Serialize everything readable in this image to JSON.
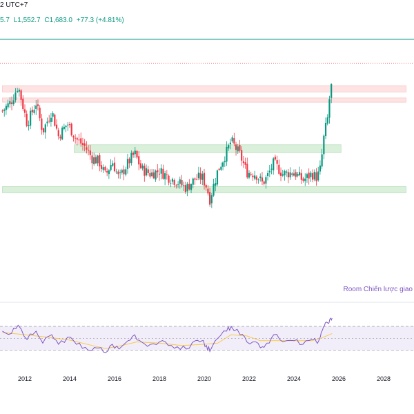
{
  "header": {
    "timeframe_tz": "2 UTC+7",
    "ohlc": {
      "open_tail": "5.7",
      "low": "L1,552.7",
      "close": "C1,683.0",
      "change": "+77.3 (+4.81%)"
    }
  },
  "annotation": "Room Chiến lược giao",
  "colors": {
    "up": "#089981",
    "down": "#f23645",
    "rsi_line": "#7e57c2",
    "rsi_ma": "#f7c948",
    "rsi_band": "#ede7f6",
    "resistance_zone": "#fde0e0",
    "support_zone": "#d6efd8"
  },
  "chart_data": [
    {
      "type": "candlestick",
      "xlabel": "",
      "ylabel": "",
      "x_ticks": [
        "2012",
        "2014",
        "2016",
        "2018",
        "2020",
        "2022",
        "2024",
        "2026",
        "2028"
      ],
      "x_range": [
        2011,
        2029
      ],
      "price_range": [
        700,
        1750
      ],
      "last_close": 1683.0,
      "zones": [
        {
          "kind": "resistance",
          "low": 1500,
          "high": 1540,
          "from": 2011,
          "to": 2029
        },
        {
          "kind": "resistance",
          "low": 1435,
          "high": 1462,
          "from": 2011,
          "to": 2029
        },
        {
          "kind": "support",
          "low": 1115,
          "high": 1165,
          "from": 2014.2,
          "to": 2026.1
        },
        {
          "kind": "support",
          "low": 860,
          "high": 900,
          "from": 2011,
          "to": 2029
        }
      ],
      "anchors": [
        [
          2011.0,
          1380
        ],
        [
          2011.4,
          1440
        ],
        [
          2011.7,
          1540
        ],
        [
          2012.1,
          1300
        ],
        [
          2012.5,
          1430
        ],
        [
          2012.8,
          1250
        ],
        [
          2013.2,
          1380
        ],
        [
          2013.5,
          1220
        ],
        [
          2013.9,
          1300
        ],
        [
          2014.3,
          1200
        ],
        [
          2014.7,
          1150
        ],
        [
          2015.0,
          1080
        ],
        [
          2015.3,
          1060
        ],
        [
          2015.6,
          970
        ],
        [
          2015.9,
          1060
        ],
        [
          2016.2,
          950
        ],
        [
          2016.6,
          1050
        ],
        [
          2016.9,
          1110
        ],
        [
          2017.2,
          1010
        ],
        [
          2017.6,
          980
        ],
        [
          2018.0,
          1000
        ],
        [
          2018.4,
          960
        ],
        [
          2018.8,
          930
        ],
        [
          2019.2,
          890
        ],
        [
          2019.6,
          950
        ],
        [
          2019.9,
          960
        ],
        [
          2020.1,
          900
        ],
        [
          2020.25,
          820
        ],
        [
          2020.6,
          1000
        ],
        [
          2021.0,
          1120
        ],
        [
          2021.2,
          1190
        ],
        [
          2021.6,
          1100
        ],
        [
          2021.9,
          990
        ],
        [
          2022.3,
          980
        ],
        [
          2022.6,
          920
        ],
        [
          2022.8,
          960
        ],
        [
          2023.1,
          1050
        ],
        [
          2023.5,
          980
        ],
        [
          2024.0,
          990
        ],
        [
          2024.4,
          940
        ],
        [
          2024.8,
          980
        ],
        [
          2025.0,
          960
        ],
        [
          2025.15,
          990
        ],
        [
          2025.25,
          1100
        ],
        [
          2025.35,
          1230
        ],
        [
          2025.5,
          1330
        ],
        [
          2025.6,
          1480
        ],
        [
          2025.7,
          1560
        ]
      ]
    },
    {
      "type": "line",
      "subtype": "rsi",
      "y_range": [
        20,
        85
      ],
      "levels": [
        70,
        50,
        30
      ],
      "series": [
        {
          "line": "rsi",
          "points": [
            [
              2011.0,
              62
            ],
            [
              2011.4,
              58
            ],
            [
              2011.7,
              72
            ],
            [
              2012.1,
              48
            ],
            [
              2012.5,
              62
            ],
            [
              2012.8,
              42
            ],
            [
              2013.2,
              56
            ],
            [
              2013.5,
              40
            ],
            [
              2013.9,
              52
            ],
            [
              2014.3,
              40
            ],
            [
              2014.7,
              35
            ],
            [
              2015.0,
              30
            ],
            [
              2015.3,
              34
            ],
            [
              2015.6,
              26
            ],
            [
              2015.9,
              40
            ],
            [
              2016.2,
              32
            ],
            [
              2016.6,
              46
            ],
            [
              2016.9,
              56
            ],
            [
              2017.2,
              44
            ],
            [
              2017.6,
              40
            ],
            [
              2018.0,
              44
            ],
            [
              2018.4,
              38
            ],
            [
              2018.8,
              36
            ],
            [
              2019.2,
              32
            ],
            [
              2019.6,
              46
            ],
            [
              2019.9,
              46
            ],
            [
              2020.1,
              38
            ],
            [
              2020.25,
              28
            ],
            [
              2020.6,
              50
            ],
            [
              2021.0,
              62
            ],
            [
              2021.2,
              70
            ],
            [
              2021.6,
              56
            ],
            [
              2021.9,
              44
            ],
            [
              2022.3,
              44
            ],
            [
              2022.6,
              36
            ],
            [
              2022.8,
              42
            ],
            [
              2023.1,
              56
            ],
            [
              2023.5,
              44
            ],
            [
              2024.0,
              46
            ],
            [
              2024.4,
              40
            ],
            [
              2024.8,
              48
            ],
            [
              2025.0,
              44
            ],
            [
              2025.15,
              50
            ],
            [
              2025.25,
              62
            ],
            [
              2025.35,
              70
            ],
            [
              2025.5,
              76
            ],
            [
              2025.6,
              82
            ],
            [
              2025.7,
              84
            ]
          ]
        },
        {
          "line": "rsi_ma",
          "points": [
            [
              2011.0,
              60
            ],
            [
              2012.0,
              56
            ],
            [
              2013.0,
              52
            ],
            [
              2014.0,
              47
            ],
            [
              2015.0,
              38
            ],
            [
              2015.6,
              33
            ],
            [
              2016.2,
              37
            ],
            [
              2017.0,
              44
            ],
            [
              2018.0,
              42
            ],
            [
              2019.0,
              38
            ],
            [
              2020.0,
              40
            ],
            [
              2020.6,
              42
            ],
            [
              2021.2,
              56
            ],
            [
              2021.9,
              54
            ],
            [
              2022.5,
              46
            ],
            [
              2023.2,
              46
            ],
            [
              2024.0,
              46
            ],
            [
              2024.8,
              46
            ],
            [
              2025.2,
              50
            ],
            [
              2025.7,
              58
            ]
          ]
        }
      ]
    }
  ]
}
